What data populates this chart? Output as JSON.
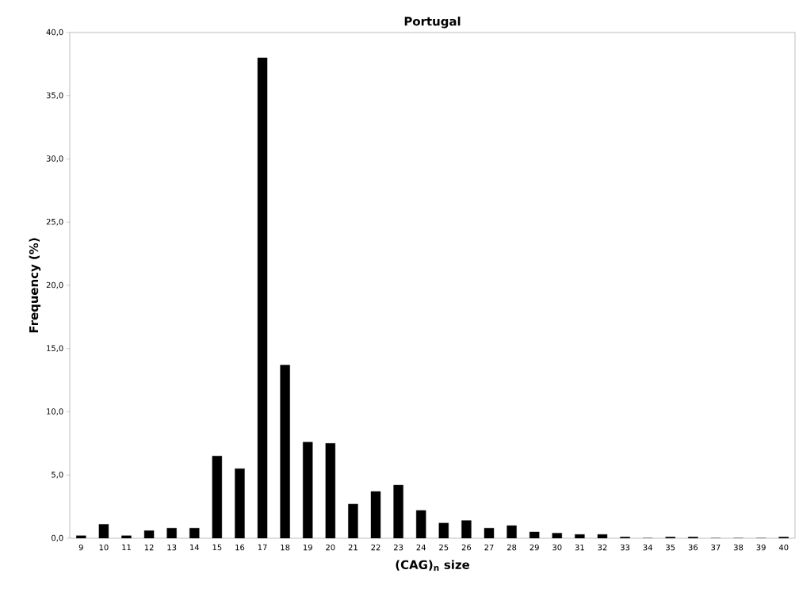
{
  "chart_data": {
    "type": "bar",
    "title": "Portugal",
    "xlabel": "(CAG)$_{n}$ size",
    "ylabel": "Frequency (%)",
    "categories": [
      "9",
      "10",
      "11",
      "12",
      "13",
      "14",
      "15",
      "16",
      "17",
      "18",
      "19",
      "20",
      "21",
      "22",
      "23",
      "24",
      "25",
      "26",
      "27",
      "28",
      "29",
      "30",
      "31",
      "32",
      "33",
      "34",
      "35",
      "36",
      "37",
      "38",
      "39",
      "40"
    ],
    "values": [
      0.2,
      1.1,
      0.2,
      0.6,
      0.8,
      0.8,
      6.5,
      5.5,
      38.0,
      13.7,
      7.6,
      7.5,
      2.7,
      3.7,
      4.2,
      2.2,
      1.2,
      1.4,
      0.8,
      1.0,
      0.5,
      0.4,
      0.3,
      0.3,
      0.1,
      0,
      0.1,
      0.1,
      0,
      0,
      0,
      0.1
    ],
    "color": "#000000",
    "ylim": [
      0,
      40
    ],
    "yticks": [
      {
        "value": 0,
        "label": "0,0"
      },
      {
        "value": 5,
        "label": "5,0"
      },
      {
        "value": 10,
        "label": "10,0"
      },
      {
        "value": 15,
        "label": "15,0"
      },
      {
        "value": 20,
        "label": "20,0"
      },
      {
        "value": 25,
        "label": "25,0"
      },
      {
        "value": 30,
        "label": "30,0"
      },
      {
        "value": 35,
        "label": "35,0"
      },
      {
        "value": 40,
        "label": "40,0"
      }
    ]
  }
}
